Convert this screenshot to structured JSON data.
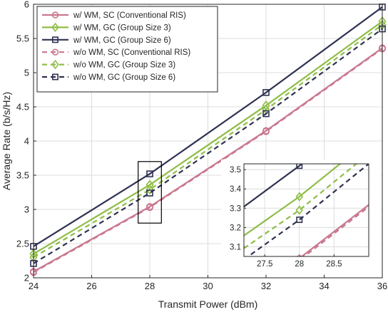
{
  "chart_data": {
    "type": "line",
    "xlabel": "Transmit Power (dBm)",
    "ylabel": "Average Rate (b/s/Hz)",
    "xlim": [
      24,
      36
    ],
    "ylim": [
      2,
      6
    ],
    "xticks": [
      "24",
      "26",
      "28",
      "30",
      "32",
      "34",
      "36"
    ],
    "yticks": [
      "2",
      "2.5",
      "3",
      "3.5",
      "4",
      "4.5",
      "5",
      "5.5",
      "6"
    ],
    "grid": true,
    "legend_position": "top-left",
    "x": [
      24,
      28,
      32,
      36
    ],
    "series": [
      {
        "name": "w/ WM, SC (Conventional RIS)",
        "values": [
          2.09,
          3.04,
          4.15,
          5.36
        ],
        "color": "#c9788f",
        "dash": "solid",
        "marker": "circle"
      },
      {
        "name": "w/ WM, GC (Group Size 3)",
        "values": [
          2.35,
          3.36,
          4.52,
          5.75
        ],
        "color": "#8ebd45",
        "dash": "solid",
        "marker": "diamond"
      },
      {
        "name": "w/ WM, GC (Group Size 6)",
        "values": [
          2.46,
          3.52,
          4.71,
          5.96
        ],
        "color": "#2f3251",
        "dash": "solid",
        "marker": "square"
      },
      {
        "name": "w/o WM, SC (Conventional RIS)",
        "values": [
          2.08,
          3.03,
          4.14,
          5.35
        ],
        "color": "#c9788f",
        "dash": "dashed",
        "marker": "circle"
      },
      {
        "name": "w/o WM, GC (Group Size 3)",
        "values": [
          2.3,
          3.29,
          4.46,
          5.7
        ],
        "color": "#8ebd45",
        "dash": "dashed",
        "marker": "diamond"
      },
      {
        "name": "w/o WM, GC (Group Size 6)",
        "values": [
          2.21,
          3.24,
          4.4,
          5.64
        ],
        "color": "#2f3251",
        "dash": "dashed",
        "marker": "square"
      }
    ],
    "inset": {
      "xlim": [
        27.2,
        29
      ],
      "ylim": [
        3.05,
        3.53
      ],
      "xticks": [
        "27.5",
        "28",
        "28.5"
      ],
      "yticks": [
        "3.1",
        "3.2",
        "3.3",
        "3.4",
        "3.5"
      ]
    }
  }
}
